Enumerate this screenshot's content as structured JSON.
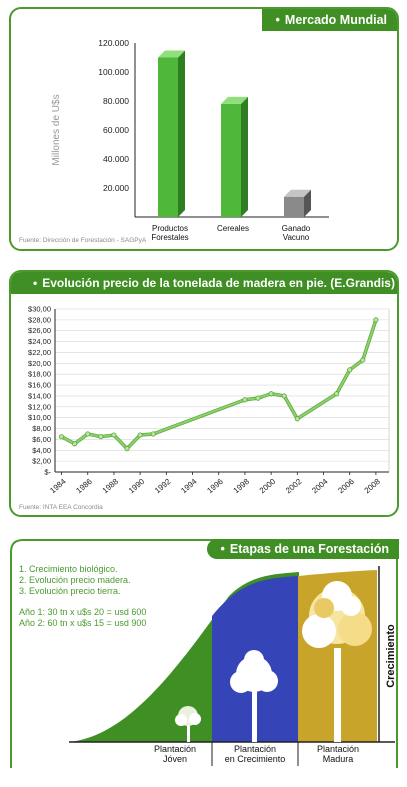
{
  "panel1": {
    "title": "Mercado Mundial",
    "source": "Fuente: Dirección de Forestación - SAGPyA"
  },
  "panel2": {
    "title": "Evolución precio de la tonelada de madera en pie. (E.Grandis)",
    "source": "Fuente: INTA EEA Concordia"
  },
  "panel3": {
    "title": "Etapas de una Forestación",
    "items": [
      "1. Crecimiento biológico.",
      "2. Evolución precio madera.",
      "3. Evolución precio tierra."
    ],
    "years": [
      "Año 1: 30 tn x u$s 20 = usd 600",
      "Año 2: 60 tn x u$s 15 = usd 900"
    ],
    "stages": [
      {
        "line1": "Plantación",
        "line2": "Jóven"
      },
      {
        "line1": "Plantación",
        "line2": "en Crecimiento"
      },
      {
        "line1": "Plantación",
        "line2": "Madura"
      }
    ],
    "vertical_label": "Crecimiento",
    "colors": {
      "green": "#3f8f25",
      "blue": "#3545b8",
      "gold": "#c8a52a"
    }
  },
  "chart_data": [
    {
      "type": "bar",
      "title": "Mercado Mundial",
      "ylabel": "Millones de U$s",
      "categories": [
        [
          "Productos",
          "Forestales"
        ],
        [
          "Cereales"
        ],
        [
          "Ganado",
          "Vacuno"
        ]
      ],
      "values": [
        110000,
        78000,
        14000
      ],
      "yticks": [
        "20.000",
        "40.000",
        "60.000",
        "80.000",
        "100.000",
        "120.000"
      ],
      "ylim": [
        0,
        120000
      ],
      "colors": [
        "#4fb83a",
        "#4fb83a",
        "#8a8a8a"
      ]
    },
    {
      "type": "line",
      "title": "Evolución precio de la tonelada de madera en pie. (E.Grandis)",
      "x": [
        1984,
        1985,
        1986,
        1987,
        1988,
        1989,
        1990,
        1991,
        1998,
        1999,
        2000,
        2001,
        2002,
        2005,
        2006,
        2007,
        2008
      ],
      "y": [
        6.5,
        5.2,
        7.0,
        6.5,
        6.8,
        4.3,
        6.8,
        7.0,
        13.3,
        13.6,
        14.4,
        14.0,
        9.8,
        14.4,
        18.8,
        20.6,
        28.0
      ],
      "xticks": [
        "1984",
        "1986",
        "1988",
        "1990",
        "1992",
        "1994",
        "1996",
        "1998",
        "2000",
        "2002",
        "2004",
        "2006",
        "2008"
      ],
      "yticks": [
        "$-",
        "$2,00",
        "$4,00",
        "$6,00",
        "$8,00",
        "$10,00",
        "$12,00",
        "$14,00",
        "$16,00",
        "$18,00",
        "$20,00",
        "$22,00",
        "$24,00",
        "$26,00",
        "$28,00",
        "$30,00"
      ],
      "xlim": [
        1983.5,
        2009
      ],
      "ylim": [
        0,
        30
      ],
      "grid": true,
      "color": "#8fd06a"
    }
  ]
}
